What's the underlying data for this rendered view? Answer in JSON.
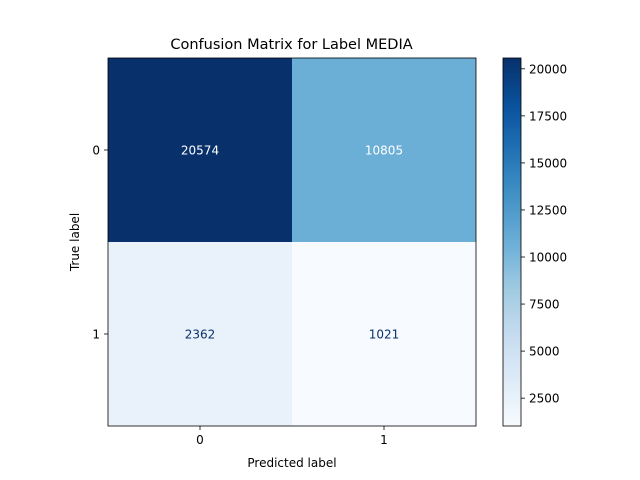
{
  "chart_data": {
    "type": "heatmap",
    "title": "Confusion Matrix for Label MEDIA",
    "xlabel": "Predicted label",
    "ylabel": "True label",
    "x_categories": [
      "0",
      "1"
    ],
    "y_categories": [
      "0",
      "1"
    ],
    "values": [
      [
        20574,
        10805
      ],
      [
        2362,
        1021
      ]
    ],
    "cell_labels": [
      [
        "20574",
        "10805"
      ],
      [
        "2362",
        "1021"
      ]
    ],
    "colormap": "Blues",
    "colorbar": {
      "range": [
        1021,
        20574
      ],
      "ticks": [
        2500,
        5000,
        7500,
        10000,
        12500,
        15000,
        17500,
        20000
      ],
      "tick_labels": [
        "2500",
        "5000",
        "7500",
        "10000",
        "12500",
        "15000",
        "17500",
        "20000"
      ]
    },
    "grid": false
  }
}
